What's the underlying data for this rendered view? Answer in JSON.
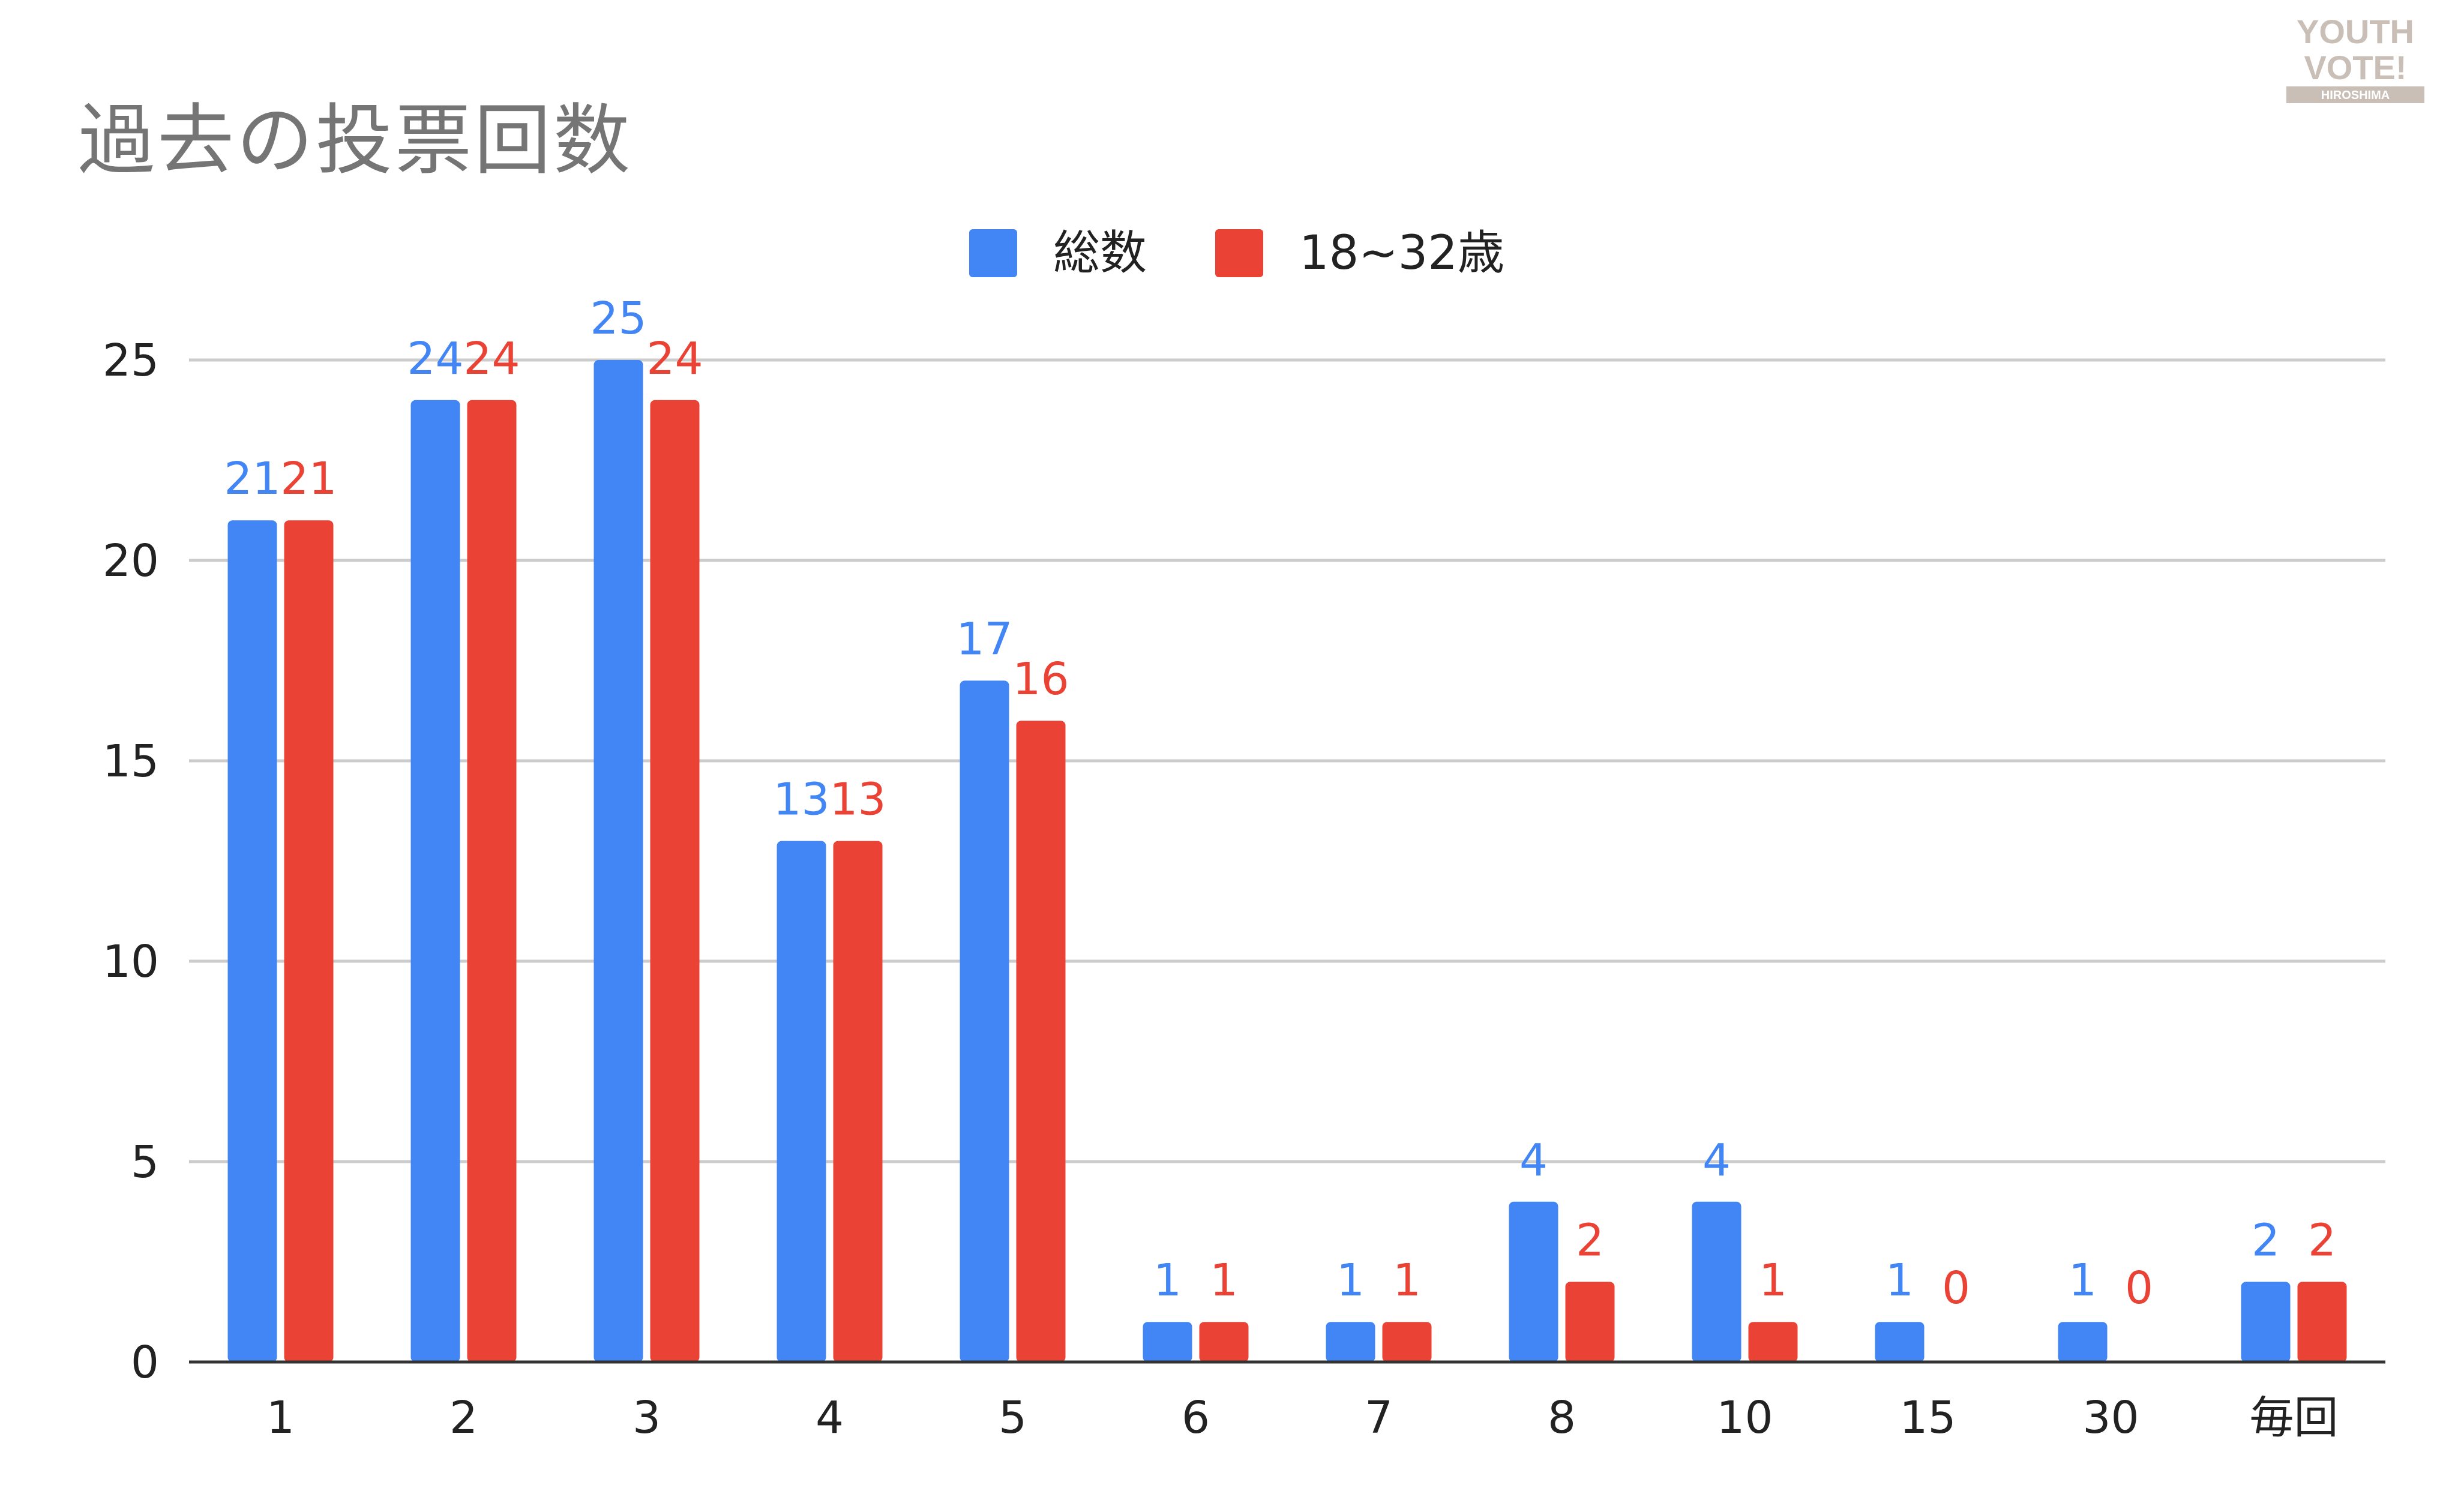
{
  "title": "過去の投票回数",
  "logo": {
    "line1": "YOUTH",
    "line2": "VOTE!",
    "line3": "HIROSHIMA"
  },
  "colors": {
    "series1": "#4285f4",
    "series2": "#ea4335",
    "grid": "#cccccc",
    "axis": "#333333"
  },
  "chart_data": {
    "type": "bar",
    "title": "過去の投票回数",
    "xlabel": "",
    "ylabel": "",
    "categories": [
      "1",
      "2",
      "3",
      "4",
      "5",
      "6",
      "7",
      "8",
      "10",
      "15",
      "30",
      "毎回"
    ],
    "series": [
      {
        "name": "総数",
        "values": [
          21,
          24,
          25,
          13,
          17,
          1,
          1,
          4,
          4,
          1,
          1,
          2
        ]
      },
      {
        "name": "18~32歳",
        "values": [
          21,
          24,
          24,
          13,
          16,
          1,
          1,
          2,
          1,
          0,
          0,
          2
        ]
      }
    ],
    "ylim": [
      0,
      25
    ],
    "yticks": [
      0,
      5,
      10,
      15,
      20,
      25
    ],
    "grid": true,
    "legend": "top",
    "data_labels": true
  }
}
